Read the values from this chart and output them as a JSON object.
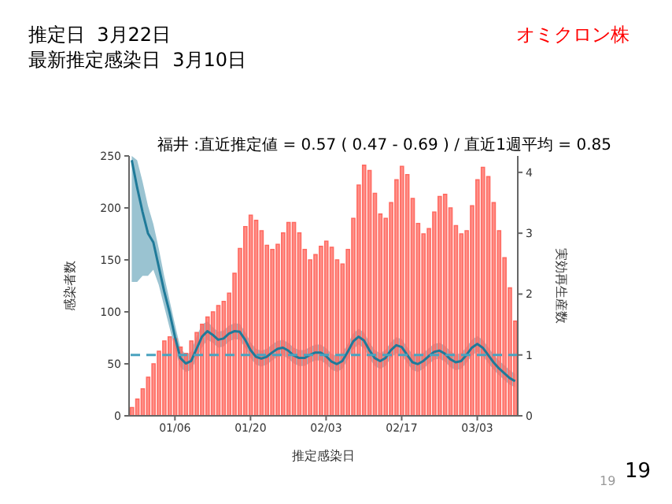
{
  "chart_data": {
    "type": "bar",
    "title": "福井 :直近推定値 = 0.57 ( 0.47 - 0.69 ) / 直近1週平均 = 0.85",
    "xlabel": "推定感染日",
    "ylabel": "感染者数",
    "y2label": "実効再生産数",
    "annotations": [
      "推定日  3月22日",
      "最新推定感染日  3月10日",
      "オミクロン株",
      "19",
      "19"
    ],
    "categories": [
      null,
      null,
      null,
      null,
      null,
      null,
      null,
      null,
      "01/06",
      null,
      null,
      null,
      null,
      null,
      null,
      null,
      null,
      null,
      null,
      null,
      null,
      null,
      "01/20",
      null,
      null,
      null,
      null,
      null,
      null,
      null,
      null,
      null,
      null,
      null,
      null,
      null,
      "02/03",
      null,
      null,
      null,
      null,
      null,
      null,
      null,
      null,
      null,
      null,
      null,
      null,
      null,
      "02/17",
      null,
      null,
      null,
      null,
      null,
      null,
      null,
      null,
      null,
      null,
      null,
      null,
      null,
      "03/03",
      null,
      null,
      null,
      null,
      null,
      null,
      null
    ],
    "series": [
      {
        "color": "#ff6b62",
        "values": [
          8,
          16,
          26,
          37,
          50,
          62,
          72,
          76,
          74,
          66,
          60,
          72,
          80,
          88,
          95,
          100,
          106,
          110,
          118,
          137,
          161,
          182,
          193,
          188,
          178,
          164,
          160,
          165,
          176,
          186,
          186,
          176,
          160,
          150,
          155,
          163,
          168,
          162,
          150,
          146,
          160,
          190,
          222,
          241,
          236,
          214,
          194,
          190,
          205,
          227,
          240,
          232,
          209,
          185,
          175,
          180,
          196,
          211,
          213,
          200,
          183,
          175,
          178,
          202,
          227,
          239,
          230,
          205,
          178,
          152,
          123,
          91
        ]
      },
      {
        "type": "line",
        "axis": "y2",
        "color": "#1f7a99",
        "values": [
          4.2,
          3.75,
          3.35,
          3.0,
          2.85,
          2.45,
          2.05,
          1.7,
          1.3,
          0.95,
          0.86,
          0.9,
          1.1,
          1.3,
          1.39,
          1.33,
          1.25,
          1.27,
          1.35,
          1.39,
          1.38,
          1.25,
          1.08,
          0.97,
          0.94,
          0.97,
          1.04,
          1.1,
          1.12,
          1.07,
          0.99,
          0.95,
          0.95,
          1.0,
          1.04,
          1.04,
          0.98,
          0.89,
          0.85,
          0.9,
          1.05,
          1.22,
          1.3,
          1.24,
          1.08,
          0.95,
          0.9,
          0.95,
          1.08,
          1.16,
          1.13,
          1.0,
          0.88,
          0.85,
          0.9,
          0.98,
          1.05,
          1.07,
          1.02,
          0.93,
          0.88,
          0.9,
          1.0,
          1.12,
          1.18,
          1.12,
          1.0,
          0.88,
          0.78,
          0.7,
          0.62,
          0.57
        ],
        "upper": [
          4.27,
          4.2,
          3.85,
          3.45,
          3.15,
          2.75,
          2.3,
          1.9,
          1.5,
          1.12,
          1.0,
          1.05,
          1.3,
          1.5,
          1.55,
          1.46,
          1.38,
          1.4,
          1.48,
          1.52,
          1.51,
          1.38,
          1.21,
          1.1,
          1.07,
          1.1,
          1.17,
          1.23,
          1.25,
          1.2,
          1.12,
          1.08,
          1.08,
          1.13,
          1.17,
          1.17,
          1.11,
          1.02,
          0.98,
          1.03,
          1.18,
          1.35,
          1.43,
          1.37,
          1.21,
          1.08,
          1.03,
          1.08,
          1.21,
          1.29,
          1.26,
          1.13,
          1.01,
          0.98,
          1.03,
          1.11,
          1.18,
          1.2,
          1.15,
          1.06,
          1.01,
          1.03,
          1.13,
          1.25,
          1.31,
          1.25,
          1.13,
          1.01,
          0.91,
          0.83,
          0.75,
          0.69
        ],
        "lower": [
          2.2,
          2.2,
          2.3,
          2.3,
          2.4,
          2.15,
          1.8,
          1.45,
          1.1,
          0.8,
          0.72,
          0.75,
          0.93,
          1.12,
          1.25,
          1.2,
          1.12,
          1.14,
          1.22,
          1.26,
          1.25,
          1.12,
          0.95,
          0.84,
          0.81,
          0.84,
          0.91,
          0.97,
          0.99,
          0.94,
          0.86,
          0.82,
          0.82,
          0.87,
          0.91,
          0.91,
          0.85,
          0.76,
          0.72,
          0.77,
          0.92,
          1.09,
          1.17,
          1.11,
          0.95,
          0.82,
          0.77,
          0.82,
          0.95,
          1.03,
          1.0,
          0.87,
          0.75,
          0.72,
          0.77,
          0.85,
          0.92,
          0.94,
          0.89,
          0.8,
          0.75,
          0.77,
          0.87,
          0.99,
          1.05,
          0.99,
          0.87,
          0.76,
          0.67,
          0.59,
          0.51,
          0.47
        ]
      }
    ],
    "ylim": [
      0,
      250
    ],
    "yticks": [
      0,
      50,
      100,
      150,
      200,
      250
    ],
    "y2lim": [
      0,
      4.27
    ],
    "y2ticks": [
      0,
      1,
      2,
      3,
      4
    ],
    "ref_lines": [
      {
        "axis": "y2",
        "value": 1,
        "color": "#4aa3bf",
        "line_style": "dashed"
      }
    ],
    "grid": false,
    "legend": false
  }
}
